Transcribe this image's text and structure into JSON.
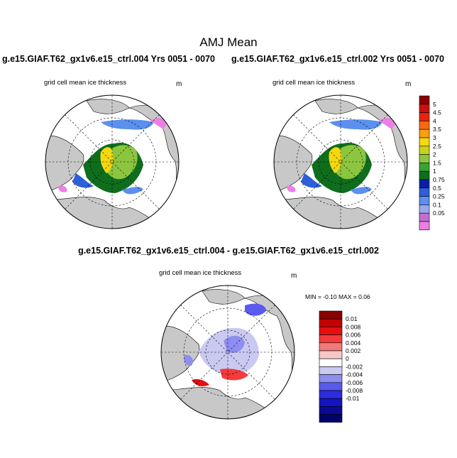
{
  "title": "AMJ Mean",
  "panels": [
    {
      "case_title": "g.e15.GIAF.T62_gx1v6.e15_ctrl.004  Yrs 0051 - 0070",
      "variable": "grid cell mean ice thickness",
      "units": "m"
    },
    {
      "case_title": "g.e15.GIAF.T62_gx1v6.e15_ctrl.002  Yrs 0051 - 0070",
      "variable": "grid cell mean ice thickness",
      "units": "m"
    }
  ],
  "difference": {
    "title": "g.e15.GIAF.T62_gx1v6.e15_ctrl.004 - g.e15.GIAF.T62_gx1v6.e15_ctrl.002",
    "variable": "grid cell mean ice thickness",
    "units": "m",
    "min_max": "MIN =  -0.10 MAX =   0.06"
  },
  "colorbars": {
    "thickness": {
      "labels": [
        "5",
        "4.5",
        "4",
        "3.5",
        "3",
        "2.5",
        "2",
        "1.5",
        "1",
        "0.75",
        "0.5",
        "0.25",
        "0.1",
        "0.05"
      ],
      "colors": [
        "#8b0000",
        "#c81010",
        "#e8240e",
        "#f56a12",
        "#f8a00e",
        "#f4d810",
        "#cbd21b",
        "#8cc63f",
        "#3aa235",
        "#0f6e1d",
        "#0a1fa8",
        "#2e5fd8",
        "#5b8ff0",
        "#9aa6ee",
        "#c06ed0",
        "#ec7fe4"
      ]
    },
    "difference": {
      "labels": [
        "0.01",
        "0.008",
        "0.006",
        "0.004",
        "0.002",
        "0",
        "-0.002",
        "-0.004",
        "-0.006",
        "-0.008",
        "-0.01"
      ],
      "colors": [
        "#8b0000",
        "#c40000",
        "#e41010",
        "#f43a3a",
        "#f07a7a",
        "#f8c6c6",
        "#ffffff",
        "#c9c9f2",
        "#8e8ef0",
        "#5a5aee",
        "#2c2ce0",
        "#1414c0",
        "#0a0a96",
        "#02026a"
      ]
    }
  }
}
